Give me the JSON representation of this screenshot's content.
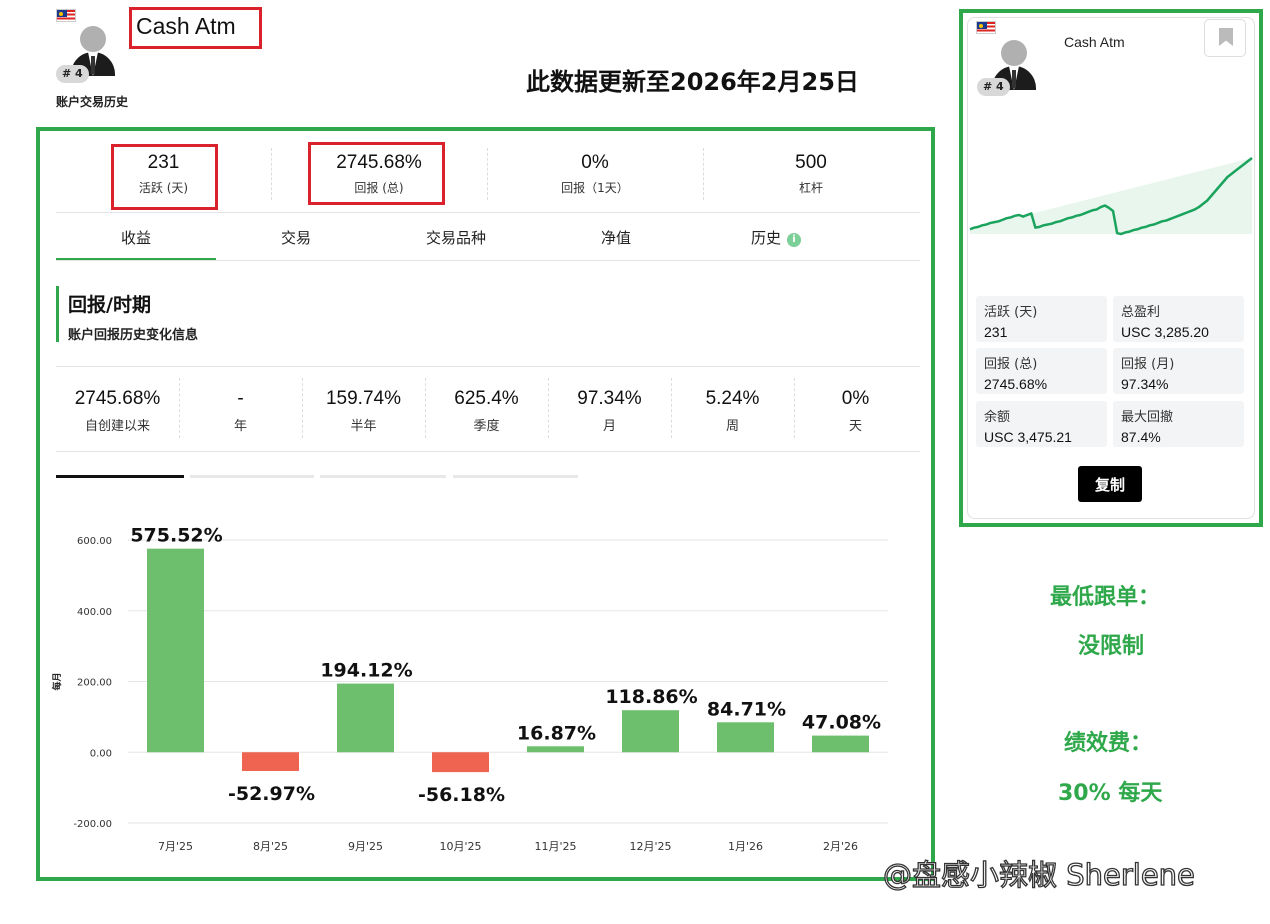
{
  "trader": {
    "name": "Cash Atm",
    "rank": "# 4",
    "subtitle": "账户交易历史",
    "flag_icon": "malaysia-flag-icon"
  },
  "update_notice": "此数据更新至2026年2月25日",
  "summary_stats": [
    {
      "value": "231",
      "label": "活跃 (天)"
    },
    {
      "value": "2745.68%",
      "label": "回报 (总)"
    },
    {
      "value": "0%",
      "label": "回报（1天）"
    },
    {
      "value": "500",
      "label": "杠杆"
    }
  ],
  "tabs": [
    {
      "label": "收益",
      "active": true
    },
    {
      "label": "交易"
    },
    {
      "label": "交易品种"
    },
    {
      "label": "净值"
    },
    {
      "label": "历史"
    }
  ],
  "info_icon_glyph": "i",
  "section": {
    "title": "回报/时期",
    "description": "账户回报历史变化信息"
  },
  "periods": [
    {
      "value": "2745.68%",
      "label": "自创建以来"
    },
    {
      "value": "-",
      "label": "年"
    },
    {
      "value": "159.74%",
      "label": "半年"
    },
    {
      "value": "625.4%",
      "label": "季度"
    },
    {
      "value": "97.34%",
      "label": "月"
    },
    {
      "value": "5.24%",
      "label": "周"
    },
    {
      "value": "0%",
      "label": "天"
    }
  ],
  "chart_data": {
    "type": "bar",
    "categories": [
      "7月'25",
      "8月'25",
      "9月'25",
      "10月'25",
      "11月'25",
      "12月'25",
      "1月'26",
      "2月'26"
    ],
    "values": [
      575.52,
      -52.97,
      194.12,
      -56.18,
      16.87,
      118.86,
      84.71,
      47.08
    ],
    "data_labels": [
      "575.52%",
      "-52.97%",
      "194.12%",
      "-56.18%",
      "16.87%",
      "118.86%",
      "84.71%",
      "47.08%"
    ],
    "ylabel": "每月",
    "ylim": [
      -200,
      600
    ],
    "yticks": [
      600,
      400,
      200,
      0,
      -200
    ],
    "ytick_labels": [
      "600.00",
      "400.00",
      "200.00",
      "0.00",
      "-200.00"
    ],
    "grid": true,
    "positive_color": "#6dbf6d",
    "negative_color": "#ee6450"
  },
  "card": {
    "name": "Cash Atm",
    "rank": "# 4",
    "bookmark_icon": "bookmark-icon",
    "equity_curve": {
      "type": "line",
      "note": "cumulative equity curve, unlabeled",
      "values": [
        10,
        12,
        13,
        15,
        16,
        18,
        19,
        20,
        22,
        24,
        25,
        27,
        28,
        26,
        28,
        30,
        12,
        13,
        15,
        16,
        17,
        19,
        20,
        22,
        24,
        25,
        27,
        28,
        30,
        32,
        34,
        35,
        38,
        40,
        37,
        33,
        5,
        4,
        6,
        7,
        9,
        10,
        12,
        13,
        15,
        16,
        18,
        20,
        21,
        23,
        25,
        27,
        29,
        31,
        33,
        35,
        38,
        42,
        46,
        52,
        58,
        64,
        70,
        76,
        80,
        84,
        88,
        92,
        96,
        100
      ],
      "line_color": "#1aa35c",
      "fill_color": "#e8f6ee"
    },
    "stats": [
      {
        "label": "活跃 (天)",
        "value": "231"
      },
      {
        "label": "总盈利",
        "value": "USC 3,285.20"
      },
      {
        "label": "回报 (总)",
        "value": "2745.68%"
      },
      {
        "label": "回报 (月)",
        "value": "97.34%"
      },
      {
        "label": "余额",
        "value": "USC 3,475.21"
      },
      {
        "label": "最大回撤",
        "value": "87.4%"
      }
    ],
    "copy_button": "复制"
  },
  "side_notes": {
    "min_follow_label": "最低跟单：",
    "min_follow_value": "没限制",
    "perf_fee_label": "绩效费：",
    "perf_fee_value": "30% 每天"
  },
  "watermark": "@盘感小辣椒 Sherlene",
  "colors": {
    "highlight_red": "#d9222b",
    "highlight_green": "#2ea84a",
    "accent_green": "#2ea84a"
  }
}
